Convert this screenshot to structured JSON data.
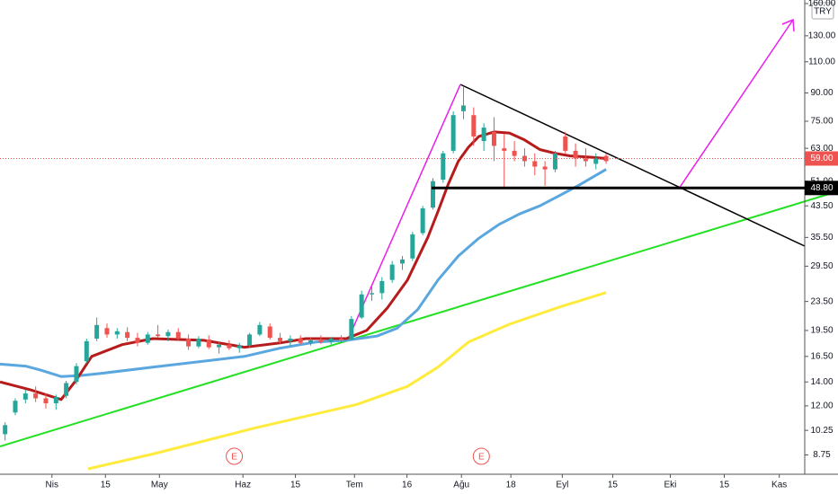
{
  "chart_data": {
    "type": "candlestick",
    "currency": "TRY",
    "log_scale": true,
    "ylim": [
      8.0,
      163.7
    ],
    "yticks": [
      8.75,
      10.25,
      {
        "value": 12,
        "label": "12.00"
      },
      {
        "value": 14,
        "label": "14.00"
      },
      {
        "value": 16.5,
        "label": "16.50"
      },
      {
        "value": 19.5,
        "label": "19.50"
      },
      {
        "value": 23.5,
        "label": "23.50"
      },
      {
        "value": 29.5,
        "label": "29.50"
      },
      {
        "value": 35.5,
        "label": "35.50"
      },
      {
        "value": 43.5,
        "label": "43.50"
      },
      {
        "value": 51,
        "label": "51.00"
      },
      {
        "value": 63,
        "label": "63.00"
      },
      {
        "value": 75,
        "label": "75.00"
      },
      {
        "value": 90,
        "label": "90.00"
      },
      {
        "value": 110,
        "label": "110.00"
      },
      {
        "value": 130,
        "label": "130.00"
      },
      {
        "value": 160,
        "label": "160.00"
      }
    ],
    "xlim": [
      0,
      158
    ],
    "xticks": [
      {
        "value": 10.2,
        "label": "Nis"
      },
      {
        "value": 20.7,
        "label": "15"
      },
      {
        "value": 31.3,
        "label": "May"
      },
      {
        "value": 47.7,
        "label": "Haz"
      },
      {
        "value": 58,
        "label": "15"
      },
      {
        "value": 69.6,
        "label": "Tem"
      },
      {
        "value": 79.9,
        "label": "16"
      },
      {
        "value": 90.6,
        "label": "Ağu"
      },
      {
        "value": 100.3,
        "label": "18"
      },
      {
        "value": 110.4,
        "label": "Eyl"
      },
      {
        "value": 120.3,
        "label": "15"
      },
      {
        "value": 131.6,
        "label": "Eki"
      },
      {
        "value": 142.2,
        "label": "15"
      },
      {
        "value": 153,
        "label": "Kas"
      }
    ],
    "up_color": "#26a69a",
    "down_color": "#ef5350",
    "candles": {
      "x": [
        1,
        3,
        5,
        7,
        9,
        11,
        13,
        15,
        17,
        19,
        21,
        23,
        25,
        27,
        29,
        31,
        33,
        35,
        37,
        39,
        41,
        43,
        45,
        47,
        49,
        51,
        53,
        55,
        57,
        59,
        61,
        63,
        65,
        67,
        69,
        71,
        73,
        75,
        77,
        79,
        81,
        83,
        85,
        87,
        89,
        91,
        93,
        95,
        97,
        99,
        101,
        103,
        105,
        107,
        109,
        111,
        113,
        115,
        117,
        119
      ],
      "open": [
        10,
        11.5,
        12.5,
        13,
        12.6,
        12.2,
        12.8,
        14,
        16,
        18.5,
        19.8,
        19,
        19.3,
        18.6,
        18,
        19,
        18.8,
        19.3,
        18.5,
        17.6,
        18.4,
        17.5,
        17.8,
        17.4,
        17.7,
        19,
        20,
        18.6,
        18.2,
        18.5,
        18,
        18.3,
        18.1,
        18.5,
        18.4,
        21.2,
        24.6,
        24.8,
        27,
        30,
        31,
        36.5,
        43,
        51.5,
        62,
        80,
        78,
        66,
        70,
        63,
        62,
        60,
        58,
        56,
        55,
        68,
        62,
        59,
        57,
        60
      ],
      "high": [
        10.8,
        12.6,
        13.3,
        13.6,
        13,
        12.9,
        14.1,
        15.8,
        18.5,
        21.2,
        20.4,
        19.8,
        19.9,
        19.2,
        19.3,
        20.2,
        19.6,
        19.8,
        19,
        18.8,
        18.9,
        18.1,
        18.3,
        18,
        19.2,
        20.6,
        20.4,
        19.2,
        18.9,
        18.9,
        18.6,
        18.9,
        18.7,
        18.9,
        21.4,
        25.2,
        26,
        27.5,
        30.5,
        31.5,
        36.8,
        43.5,
        52,
        62,
        80,
        94,
        82,
        74,
        77,
        69,
        66,
        63,
        61,
        58,
        62,
        70,
        65,
        63,
        61,
        61
      ],
      "low": [
        9.6,
        11.3,
        12.2,
        12.3,
        11.8,
        11.7,
        12.6,
        13.8,
        15.8,
        18.2,
        18.6,
        18.5,
        18.2,
        17.6,
        17.8,
        18.6,
        18.2,
        18.3,
        17.2,
        17.4,
        17.3,
        16.8,
        17.2,
        16.9,
        17.5,
        18.8,
        18.4,
        17.9,
        17.6,
        17.8,
        17.7,
        17.9,
        17.8,
        18,
        18.3,
        21,
        23.6,
        23.8,
        26.5,
        28.8,
        30.5,
        36,
        42.5,
        50.5,
        61,
        76,
        64,
        62,
        58,
        48.5,
        58,
        56,
        53,
        49.5,
        54,
        61,
        56,
        56,
        55,
        57
      ],
      "close": [
        10.6,
        12.4,
        13,
        12.6,
        12.2,
        12.7,
        13.9,
        15.5,
        18.2,
        20.2,
        19,
        19.4,
        18.6,
        18,
        19,
        18.8,
        19.3,
        18.5,
        17.6,
        18.5,
        17.5,
        17.8,
        17.4,
        17.7,
        19,
        20.2,
        18.6,
        18.2,
        18.5,
        18,
        18.3,
        18.1,
        18.5,
        18.3,
        21,
        24.6,
        24.8,
        26.8,
        29.8,
        30.8,
        36.2,
        42.8,
        51,
        61,
        78,
        83,
        68,
        72,
        64,
        62,
        60,
        58,
        56,
        55,
        61,
        62,
        59,
        58,
        59,
        58
      ]
    },
    "lines": [
      {
        "color": "#ffeb3b",
        "x": [
          17.3,
          30,
          50,
          70,
          80,
          86,
          92,
          100,
          110,
          119
        ],
        "values": [
          8.0,
          8.8,
          10.4,
          12.1,
          13.6,
          15.4,
          18.1,
          20.3,
          22.7,
          24.9
        ]
      },
      {
        "color": "#5aa7e0",
        "x": [
          0,
          5,
          8,
          12,
          16,
          20,
          30,
          40,
          48,
          55,
          62,
          68,
          74,
          78,
          82,
          86,
          90,
          94,
          98,
          102,
          106,
          110,
          114,
          119
        ],
        "values": [
          15.7,
          15.5,
          15.1,
          14.5,
          14.6,
          14.8,
          15.4,
          16,
          16.5,
          17.4,
          18.1,
          18.3,
          18.8,
          19.8,
          22.3,
          27,
          31.5,
          35.3,
          38.6,
          41.3,
          43.5,
          46.6,
          50,
          55
        ]
      },
      {
        "color": "#b71c1c",
        "x": [
          0,
          6,
          12,
          15,
          18,
          24,
          30,
          40,
          48,
          55,
          60,
          68,
          72,
          76,
          80,
          84,
          86,
          88,
          90,
          92,
          94,
          97,
          100,
          103,
          106,
          109,
          112,
          116,
          119
        ],
        "values": [
          14,
          13.3,
          12.5,
          14.2,
          16.5,
          17.8,
          18.5,
          18.3,
          17.5,
          18,
          18.5,
          18.5,
          19.5,
          22.5,
          27,
          35.5,
          42,
          50,
          58,
          63.5,
          68,
          70,
          69.5,
          66.5,
          62.5,
          61,
          60,
          59.5,
          59
        ]
      }
    ],
    "last_price": {
      "value": 59,
      "label": "59.00"
    },
    "level": {
      "value": 48.8,
      "label": "48.80"
    },
    "events": [
      {
        "x": 46,
        "label": "E"
      },
      {
        "x": 94.5,
        "label": "E"
      }
    ]
  }
}
